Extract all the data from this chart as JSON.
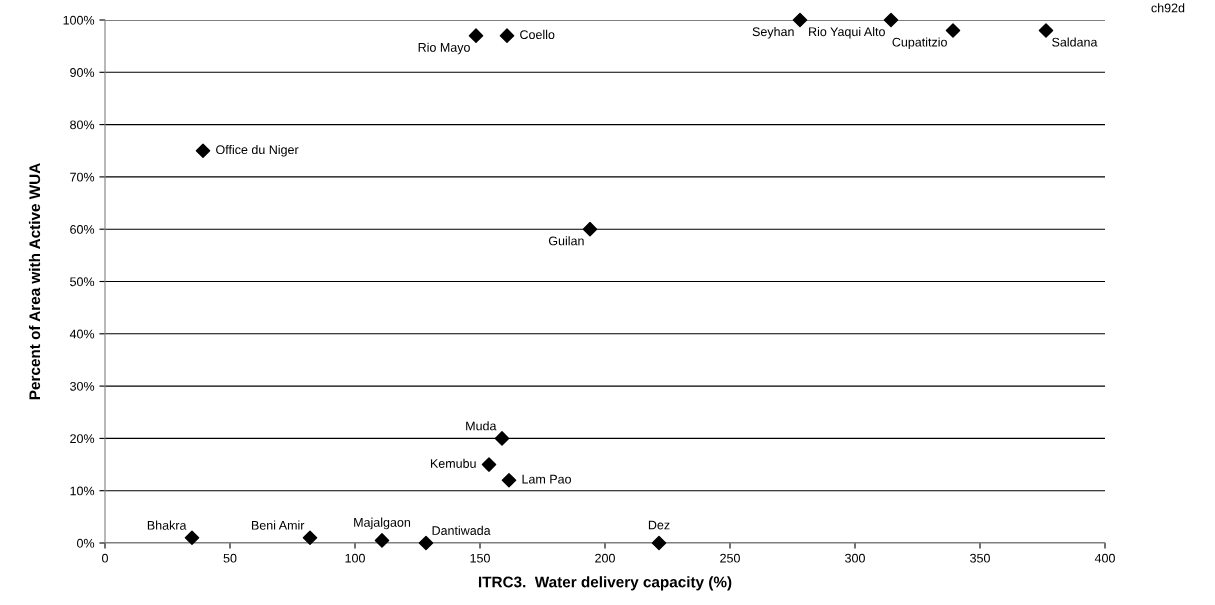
{
  "chart_data": {
    "type": "scatter",
    "xlabel": "ITRC3.  Water delivery capacity (%)",
    "ylabel": "Percent of Area with Active WUA",
    "x": [
      34.8,
      82,
      110.8,
      128.4,
      221.6,
      161.6,
      153.6,
      158.8,
      194,
      39.2,
      148.4,
      160.8,
      278,
      314.4,
      339.2,
      376.4
    ],
    "values": [
      1,
      1,
      0.5,
      0,
      0,
      12,
      15,
      20,
      60,
      75,
      97,
      97,
      100,
      100,
      98,
      98
    ],
    "color": "#000000",
    "marker": "diamond",
    "grid": "y",
    "legend": false,
    "xlim": [
      0,
      400
    ],
    "xticks": [
      0,
      50,
      100,
      150,
      200,
      250,
      300,
      350,
      400
    ],
    "ylim": [
      0,
      100
    ],
    "yticks": [
      {
        "value": 0,
        "label": "0%"
      },
      {
        "value": 10,
        "label": "10%"
      },
      {
        "value": 20,
        "label": "20%"
      },
      {
        "value": 30,
        "label": "30%"
      },
      {
        "value": 40,
        "label": "40%"
      },
      {
        "value": 50,
        "label": "50%"
      },
      {
        "value": 60,
        "label": "60%"
      },
      {
        "value": 70,
        "label": "70%"
      },
      {
        "value": 80,
        "label": "80%"
      },
      {
        "value": 90,
        "label": "90%"
      },
      {
        "value": 100,
        "label": "100%"
      }
    ],
    "annotations": [
      {
        "text": "Bhakra",
        "x": 34.8,
        "y": 1
      },
      {
        "text": "Beni Amir",
        "x": 82,
        "y": 1
      },
      {
        "text": "Majalgaon",
        "x": 110.8,
        "y": 0.5
      },
      {
        "text": "Dantiwada",
        "x": 128.4,
        "y": 0
      },
      {
        "text": "Dez",
        "x": 221.6,
        "y": 0
      },
      {
        "text": "Lam Pao",
        "x": 161.6,
        "y": 12
      },
      {
        "text": "Kemubu",
        "x": 153.6,
        "y": 15
      },
      {
        "text": "Muda",
        "x": 158.8,
        "y": 20
      },
      {
        "text": "Guilan",
        "x": 194,
        "y": 60
      },
      {
        "text": "Office du Niger",
        "x": 39.2,
        "y": 75
      },
      {
        "text": "Rio Mayo",
        "x": 148.4,
        "y": 97
      },
      {
        "text": "Coello",
        "x": 160.8,
        "y": 97
      },
      {
        "text": "Seyhan",
        "x": 278,
        "y": 100
      },
      {
        "text": "Rio Yaqui Alto",
        "x": 314.4,
        "y": 100
      },
      {
        "text": "Cupatitzio",
        "x": 339.2,
        "y": 98
      },
      {
        "text": "Saldana",
        "x": 376.4,
        "y": 98
      },
      "ch92d"
    ]
  }
}
